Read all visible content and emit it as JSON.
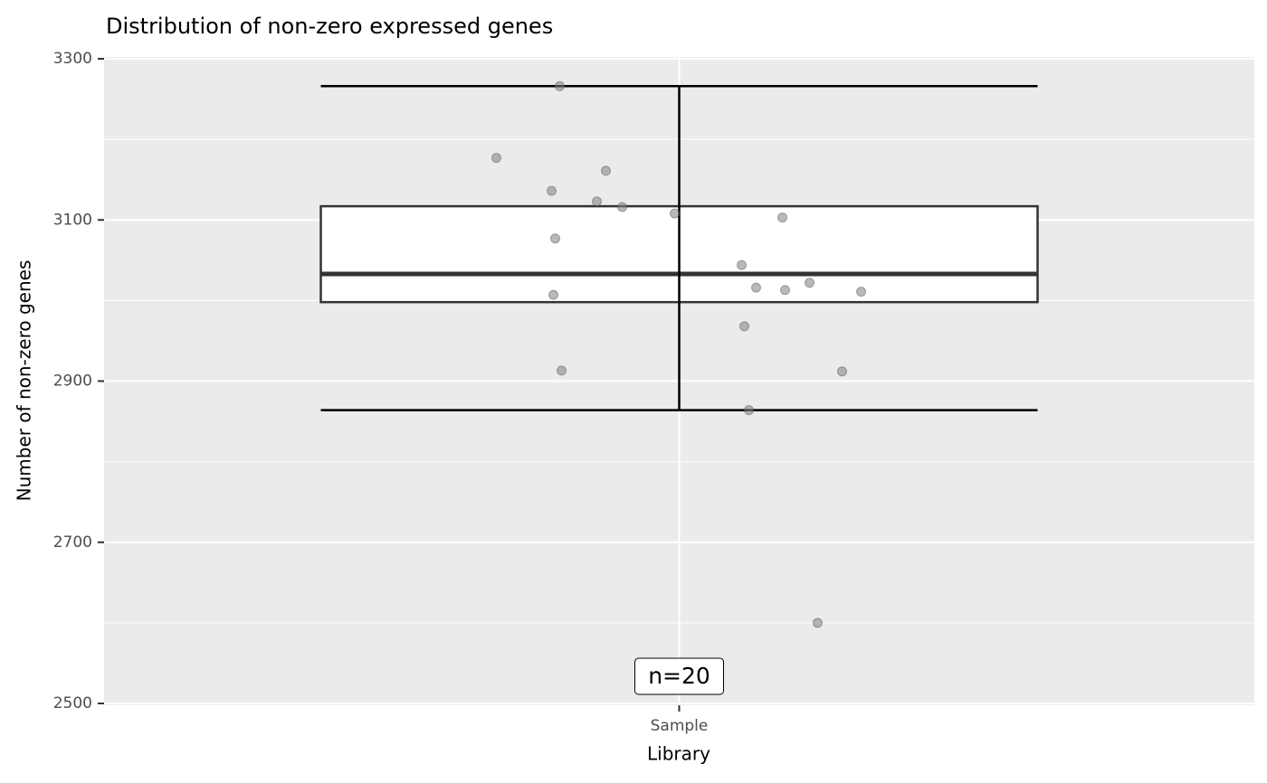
{
  "chart_data": {
    "type": "boxplot",
    "title": "Distribution of non-zero expressed genes",
    "x_label": "Library",
    "y_label": "Number of non-zero genes",
    "categories": [
      "Sample"
    ],
    "boxes": [
      {
        "whisker_low": 2864,
        "q1": 2998,
        "median": 3033,
        "q3": 3117,
        "whisker_high": 3266
      }
    ],
    "points": {
      "color": "#808080",
      "values": [
        3266,
        3177,
        3161,
        3136,
        3123,
        3116,
        3108,
        3103,
        3077,
        3044,
        3016,
        3022,
        3013,
        3011,
        3007,
        2968,
        2913,
        2912,
        2864,
        2600
      ]
    },
    "annotation": "n=20",
    "ylim": [
      2500,
      3300
    ],
    "yticks": [
      2500,
      2700,
      2900,
      3100,
      3300
    ],
    "grid": true
  }
}
